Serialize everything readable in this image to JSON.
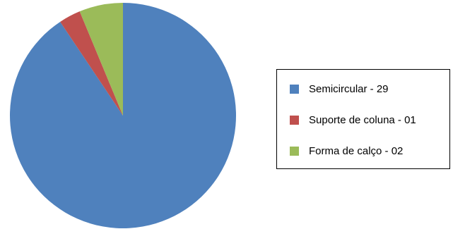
{
  "chart_data": {
    "type": "pie",
    "title": "",
    "slices": [
      {
        "label": "Semicircular - 29",
        "value": 29,
        "color": "#4F81BD"
      },
      {
        "label": "Suporte de coluna - 01",
        "value": 1,
        "color": "#C0504D"
      },
      {
        "label": "Forma de calço - 02",
        "value": 2,
        "color": "#9BBB59"
      }
    ],
    "start_angle_deg": 0,
    "direction": "clockwise",
    "legend": {
      "position": "right",
      "items": [
        "Semicircular - 29",
        "Suporte de coluna - 01",
        "Forma de calço - 02"
      ]
    }
  }
}
